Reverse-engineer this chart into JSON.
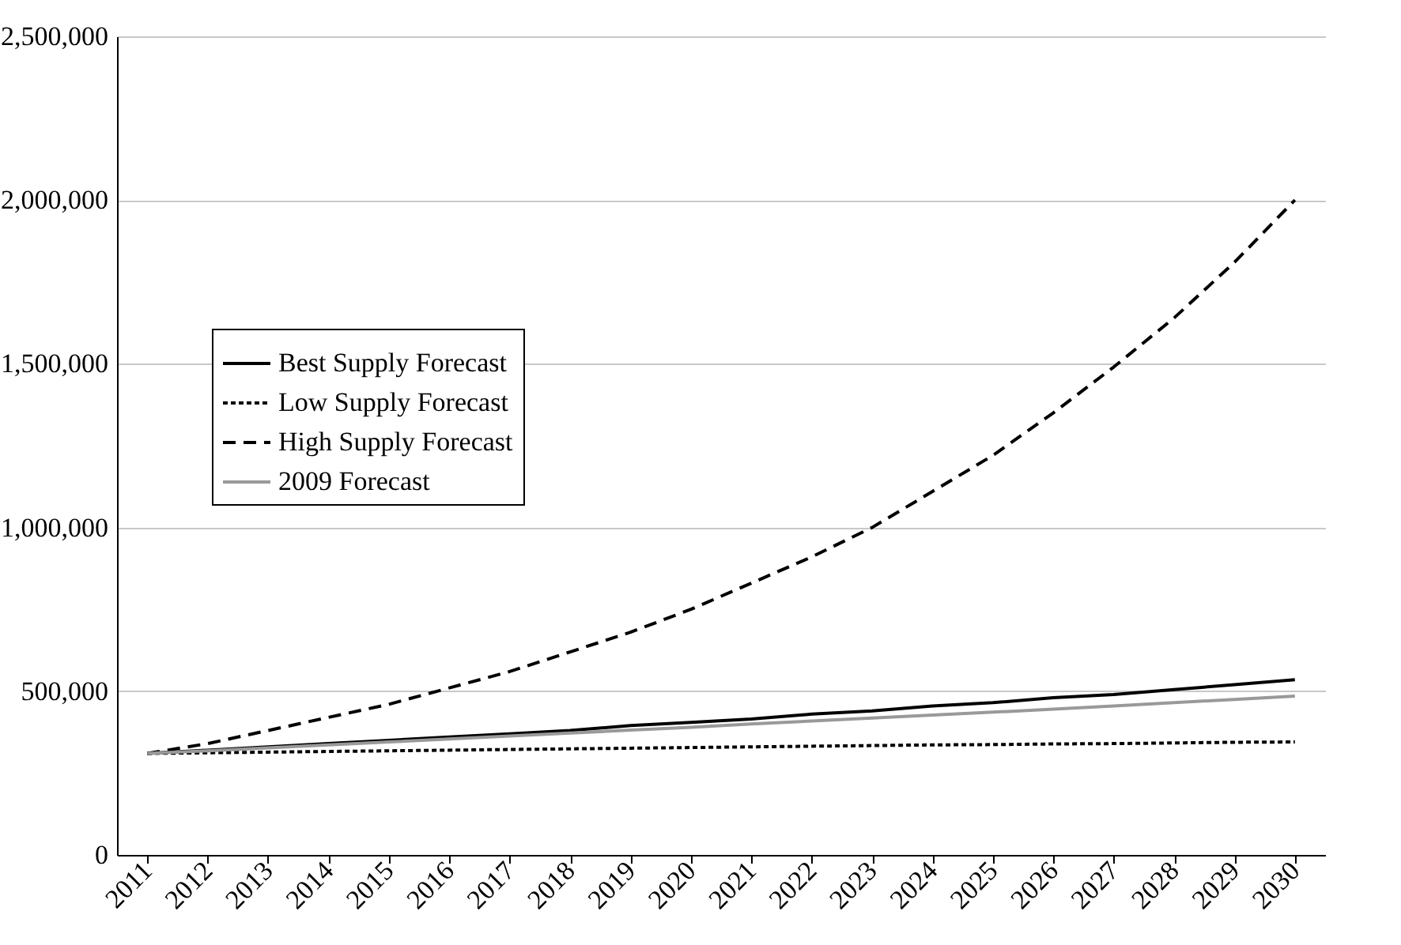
{
  "chart_data": {
    "type": "line",
    "categories": [
      "2011",
      "2012",
      "2013",
      "2014",
      "2015",
      "2016",
      "2017",
      "2018",
      "2019",
      "2020",
      "2021",
      "2022",
      "2023",
      "2024",
      "2025",
      "2026",
      "2027",
      "2028",
      "2029",
      "2030"
    ],
    "series": [
      {
        "name": "Best Supply Forecast",
        "color": "#000000",
        "line_style": "solid",
        "values": [
          310000,
          320000,
          330000,
          340000,
          350000,
          360000,
          370000,
          380000,
          395000,
          405000,
          415000,
          430000,
          440000,
          455000,
          465000,
          480000,
          490000,
          505000,
          520000,
          535000
        ]
      },
      {
        "name": "Low Supply Forecast",
        "color": "#000000",
        "line_style": "dotted",
        "values": [
          310000,
          312000,
          314000,
          316000,
          318000,
          320000,
          322000,
          324000,
          326000,
          328000,
          330000,
          332000,
          334000,
          336000,
          337000,
          339000,
          340000,
          342000,
          344000,
          345000
        ]
      },
      {
        "name": "High Supply Forecast",
        "color": "#000000",
        "line_style": "dashed",
        "values": [
          310000,
          340000,
          380000,
          420000,
          460000,
          510000,
          560000,
          620000,
          680000,
          750000,
          830000,
          910000,
          1000000,
          1110000,
          1220000,
          1350000,
          1490000,
          1640000,
          1810000,
          2000000
        ]
      },
      {
        "name": "2009 Forecast",
        "color": "#999999",
        "line_style": "solid",
        "values": [
          310000,
          318000,
          327000,
          336000,
          345000,
          354000,
          363000,
          372000,
          381000,
          390000,
          400000,
          409000,
          418000,
          427000,
          436000,
          445000,
          455000,
          465000,
          475000,
          485000
        ]
      }
    ],
    "ylim": [
      0,
      2500000
    ],
    "yticks": [
      {
        "value": 0,
        "label": "0"
      },
      {
        "value": 500000,
        "label": "500,000"
      },
      {
        "value": 1000000,
        "label": "1,000,000"
      },
      {
        "value": 1500000,
        "label": "1,500,000"
      },
      {
        "value": 2000000,
        "label": "2,000,000"
      },
      {
        "value": 2500000,
        "label": "2,500,000"
      }
    ],
    "grid": "y",
    "legend": "left"
  }
}
